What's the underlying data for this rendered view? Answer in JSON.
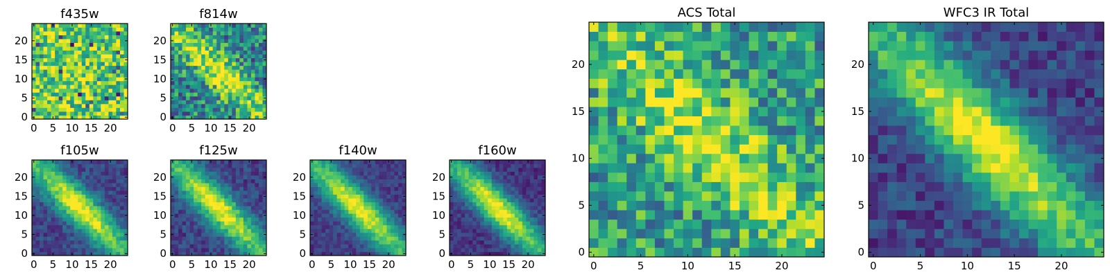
{
  "chart_data": [
    {
      "type": "heatmap",
      "title": "f435w",
      "grid": false,
      "colormap": "viridis",
      "xlim": [
        -0.5,
        24.5
      ],
      "ylim": [
        -0.5,
        24.5
      ],
      "xticks": [
        "0",
        "5",
        "10",
        "15",
        "20"
      ],
      "yticks": [
        "0",
        "5",
        "10",
        "15",
        "20"
      ],
      "pattern": "noise",
      "mean_level": 0.78,
      "noise_level": 0.3
    },
    {
      "type": "heatmap",
      "title": "f814w",
      "grid": false,
      "colormap": "viridis",
      "xlim": [
        -0.5,
        24.5
      ],
      "ylim": [
        -0.5,
        24.5
      ],
      "xticks": [
        "0",
        "5",
        "10",
        "15",
        "20"
      ],
      "yticks": [
        "0",
        "5",
        "10",
        "15",
        "20"
      ],
      "pattern": "diagonal-band",
      "band_center": [
        12,
        12
      ],
      "background_level": 0.45,
      "peak_level": 0.95,
      "noise_level": 0.3
    },
    {
      "type": "heatmap",
      "title": "f105w",
      "grid": false,
      "colormap": "viridis",
      "xlim": [
        -0.5,
        24.5
      ],
      "ylim": [
        -0.5,
        24.5
      ],
      "xticks": [
        "0",
        "5",
        "10",
        "15",
        "20"
      ],
      "yticks": [
        "0",
        "5",
        "10",
        "15",
        "20"
      ],
      "pattern": "diagonal-band",
      "band_center": [
        12,
        12
      ],
      "background_level": 0.2,
      "peak_level": 1.0,
      "noise_level": 0.12
    },
    {
      "type": "heatmap",
      "title": "f125w",
      "grid": false,
      "colormap": "viridis",
      "xlim": [
        -0.5,
        24.5
      ],
      "ylim": [
        -0.5,
        24.5
      ],
      "xticks": [
        "0",
        "5",
        "10",
        "15",
        "20"
      ],
      "yticks": [
        "0",
        "5",
        "10",
        "15",
        "20"
      ],
      "pattern": "diagonal-band",
      "band_center": [
        12,
        12
      ],
      "background_level": 0.2,
      "peak_level": 1.0,
      "noise_level": 0.12
    },
    {
      "type": "heatmap",
      "title": "f140w",
      "grid": false,
      "colormap": "viridis",
      "xlim": [
        -0.5,
        24.5
      ],
      "ylim": [
        -0.5,
        24.5
      ],
      "xticks": [
        "0",
        "5",
        "10",
        "15",
        "20"
      ],
      "yticks": [
        "0",
        "5",
        "10",
        "15",
        "20"
      ],
      "pattern": "diagonal-band",
      "band_center": [
        12,
        12
      ],
      "background_level": 0.18,
      "peak_level": 1.0,
      "noise_level": 0.1
    },
    {
      "type": "heatmap",
      "title": "f160w",
      "grid": false,
      "colormap": "viridis",
      "xlim": [
        -0.5,
        24.5
      ],
      "ylim": [
        -0.5,
        24.5
      ],
      "xticks": [
        "0",
        "5",
        "10",
        "15",
        "20"
      ],
      "yticks": [
        "0",
        "5",
        "10",
        "15",
        "20"
      ],
      "pattern": "diagonal-band",
      "band_center": [
        12,
        12
      ],
      "background_level": 0.15,
      "peak_level": 1.0,
      "noise_level": 0.1
    },
    {
      "type": "heatmap",
      "title": "ACS Total",
      "grid": false,
      "colormap": "viridis",
      "xlim": [
        -0.5,
        24.5
      ],
      "ylim": [
        -0.5,
        24.5
      ],
      "xticks": [
        "0",
        "5",
        "10",
        "15",
        "20"
      ],
      "yticks": [
        "0",
        "5",
        "10",
        "15",
        "20"
      ],
      "pattern": "diagonal-band",
      "band_center": [
        12,
        12
      ],
      "background_level": 0.55,
      "peak_level": 0.92,
      "noise_level": 0.28
    },
    {
      "type": "heatmap",
      "title": "WFC3 IR Total",
      "grid": false,
      "colormap": "viridis",
      "xlim": [
        -0.5,
        24.5
      ],
      "ylim": [
        -0.5,
        24.5
      ],
      "xticks": [
        "0",
        "5",
        "10",
        "15",
        "20"
      ],
      "yticks": [
        "0",
        "5",
        "10",
        "15",
        "20"
      ],
      "pattern": "diagonal-band",
      "band_center": [
        12,
        12
      ],
      "background_level": 0.2,
      "peak_level": 1.0,
      "noise_level": 0.14
    }
  ]
}
